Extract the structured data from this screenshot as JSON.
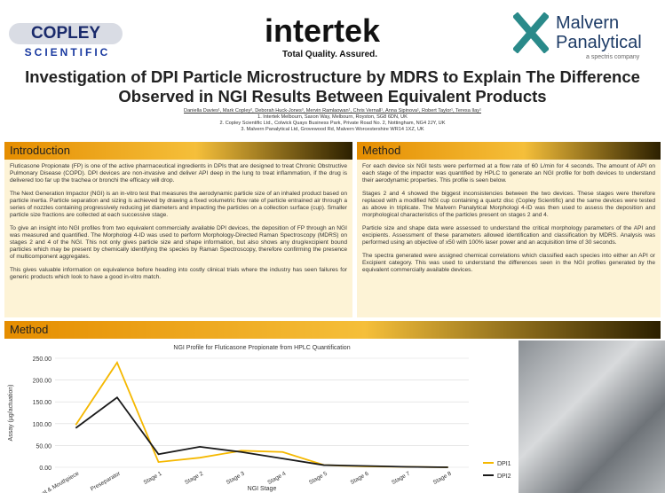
{
  "logos": {
    "copley": "COPLEY",
    "copley_sub": "SCIENTIFIC",
    "intertek": "intertek",
    "intertek_tagline": "Total Quality. Assured.",
    "malvern": "Malvern Panalytical",
    "malvern_sub": "a spectris company"
  },
  "title": "Investigation of DPI Particle Microstructure by MDRS to Explain The Difference Observed in NGI Results Between Equivalent Products",
  "authors": "Daniella Davies¹, Mark Copley², Deborah Huck-Jones³, Mervin Ramlaowan¹, Chris Vernall¹, Anna Sipinova¹, Robert Taylor¹, Teresa Ilay¹",
  "affiliations": [
    "1. Intertek Melbourn, Saxon Way, Melbourn, Royston, SG8 6DN, UK",
    "2. Copley Scientific Ltd., Colwick Quays Business Park, Private Road No. 2, Nottingham, NG4 2JY, UK",
    "3. Malvern Panalytical Ltd, Grovewood Rd, Malvern Worcestershire WR14 1XZ, UK"
  ],
  "introduction": {
    "heading": "Introduction",
    "paragraphs": [
      "Fluticasone Propionate (FP) is one of the active pharmaceutical ingredients in DPIs that are designed to treat Chronic Obstructive Pulmonary Disease (COPD). DPI devices are non-invasive and deliver API deep in the lung to treat inflammation, if the drug is delivered too far up the trachea or bronchi the efficacy will drop.",
      "The Next Generation Impactor (NGI) is an in-vitro test that measures the aerodynamic particle size of an inhaled product based on particle inertia. Particle separation and sizing is achieved by drawing a fixed volumetric flow rate of particle entrained air through a series of nozzles containing progressively reducing jet diameters and impacting the particles on a collection surface (cup). Smaller particle size fractions are collected at each successive stage.",
      "To give an insight into NGI profiles from two equivalent commercially available DPI devices, the deposition of FP through an NGI was measured and quantified. The Morphologi 4-ID was used to perform Morphology-Directed Raman Spectroscopy (MDRS) on stages 2 and 4 of the NGI. This not only gives particle size and shape information, but also shows any drug/excipient bound particles which may be present by chemically identifying the species by Raman Spectroscopy, therefore confirming the presence of multicomponent aggregates.",
      "This gives valuable information on equivalence before heading into costly clinical trials where the industry has seen failures for generic products which look to have a good in-vitro match."
    ]
  },
  "method": {
    "heading": "Method",
    "paragraphs": [
      "For each device six NGI tests were performed at a flow rate of 60 L/min for 4 seconds. The amount of API on each stage of the impactor was quantified by HPLC to generate an NGI profile for both devices to understand their aerodynamic properties. This profile is seen below.",
      "Stages 2 and 4 showed the biggest inconsistencies between the two devices. These stages were therefore replaced with a modified NGI cup containing a quartz disc (Copley Scientific) and the same devices were tested as above in triplicate. The Malvern Panalytical Morphologi 4-ID was then used to assess the deposition and morphological characteristics of the particles present on stages 2 and 4.",
      "Particle size and shape data were assessed to understand the critical morphology parameters of the API and excipients. Assessment of these parameters allowed identification and classification by MDRS. Analysis was performed using an objective of x50 with 100% laser power and an acquisition time of 30 seconds.",
      "The spectra generated were assigned chemical correlations which classified each species into either an API or Excipient category. This was used to understand the differences seen in the NGI profiles generated by the equivalent commercially available devices."
    ]
  },
  "method_bottom": {
    "heading": "Method"
  },
  "chart_data": {
    "type": "line",
    "title": "NGI Profile for Fluticasone Propionate from HPLC Quantification",
    "x_label": "NGI Stage",
    "y_label": "Assay (µg/actuation)",
    "categories": [
      "Throat & Mouthpiece",
      "Preseparator",
      "Stage 1",
      "Stage 2",
      "Stage 3",
      "Stage 4",
      "Stage 5",
      "Stage 6",
      "Stage 7",
      "Stage 8"
    ],
    "series": [
      {
        "name": "DPI1",
        "color": "#f5b800",
        "values": [
          97,
          240,
          12,
          22,
          38,
          35,
          5,
          2,
          1,
          0
        ]
      },
      {
        "name": "DPI2",
        "color": "#1a1a1a",
        "values": [
          90,
          160,
          30,
          47,
          35,
          20,
          5,
          3,
          1,
          0
        ]
      }
    ],
    "ylim": [
      0,
      250
    ],
    "yticks": [
      {
        "value": 0,
        "label": "0.00"
      },
      {
        "value": 50,
        "label": "50.00"
      },
      {
        "value": 100,
        "label": "100.00"
      },
      {
        "value": 150,
        "label": "150.00"
      },
      {
        "value": 200,
        "label": "200.00"
      },
      {
        "value": 250,
        "label": "250.00"
      }
    ],
    "grid": true
  }
}
